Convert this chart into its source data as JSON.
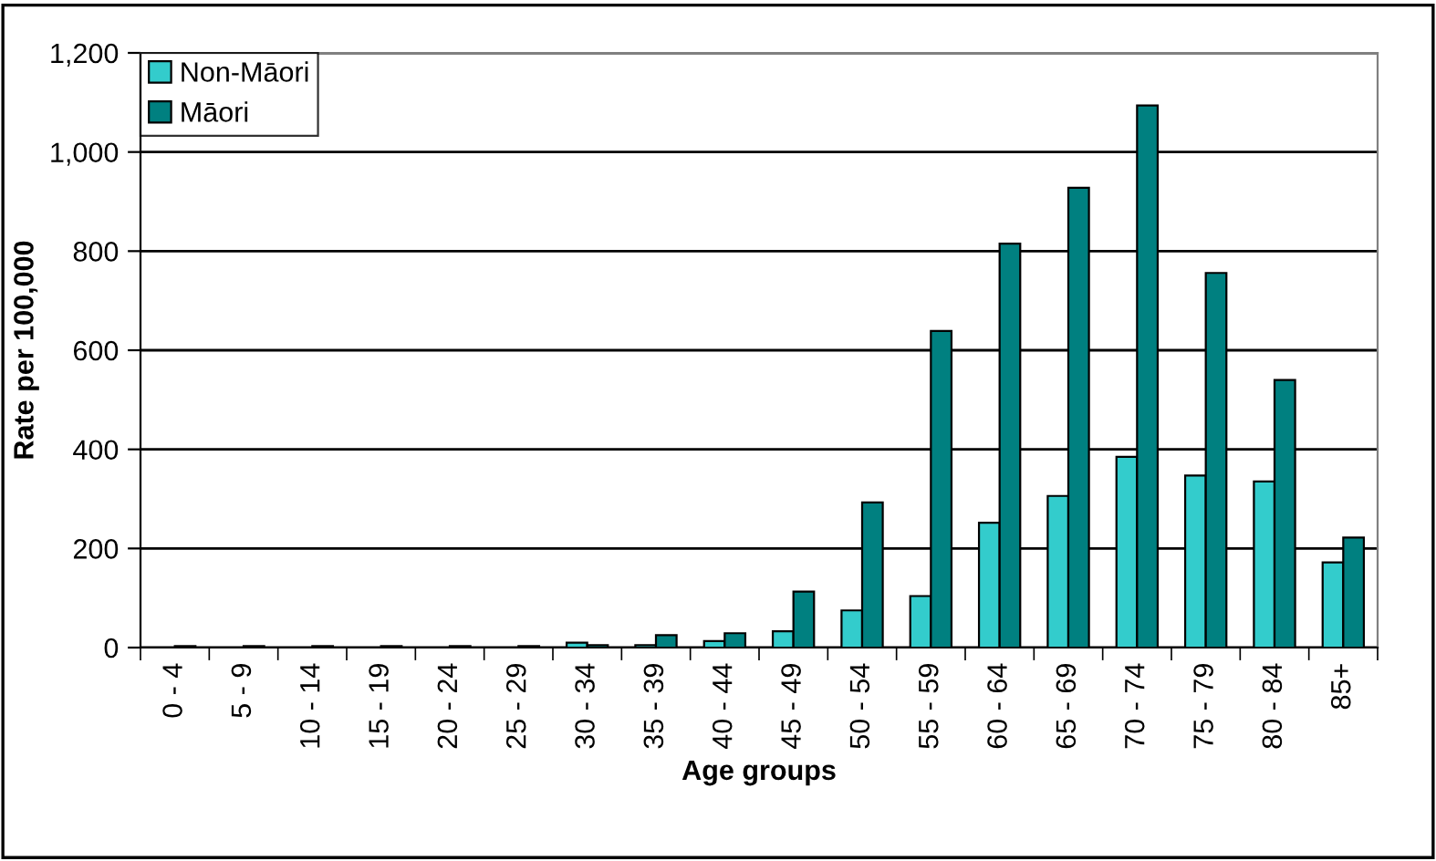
{
  "chart_data": {
    "type": "bar",
    "xlabel": "Age groups",
    "ylabel": "Rate per 100,000",
    "categories": [
      "0 - 4",
      "5 - 9",
      "10 - 14",
      "15 - 19",
      "20 - 24",
      "25 - 29",
      "30 - 34",
      "35 - 39",
      "40 - 44",
      "45 - 49",
      "50 - 54",
      "55 - 59",
      "60 - 64",
      "65 - 69",
      "70 - 74",
      "75 - 79",
      "80 - 84",
      "85+"
    ],
    "series": [
      {
        "name": "Non-Māori",
        "color": "#33cccc",
        "values": [
          null,
          null,
          null,
          null,
          null,
          null,
          10,
          5,
          13,
          33,
          75,
          104,
          252,
          306,
          385,
          347,
          335,
          172
        ]
      },
      {
        "name": "Māori",
        "color": "#008080",
        "values": [
          3,
          3,
          3,
          3,
          3,
          3,
          5,
          25,
          29,
          113,
          293,
          639,
          815,
          928,
          1094,
          756,
          540,
          222
        ]
      }
    ],
    "ylim": [
      0,
      1200
    ],
    "yticks": [
      {
        "value": 0,
        "label": "0"
      },
      {
        "value": 200,
        "label": "200"
      },
      {
        "value": 400,
        "label": "400"
      },
      {
        "value": 600,
        "label": "600"
      },
      {
        "value": 800,
        "label": "800"
      },
      {
        "value": 1000,
        "label": "1,000"
      },
      {
        "value": 1200,
        "label": "1,200"
      }
    ],
    "grid": "y",
    "legend": "top left"
  }
}
